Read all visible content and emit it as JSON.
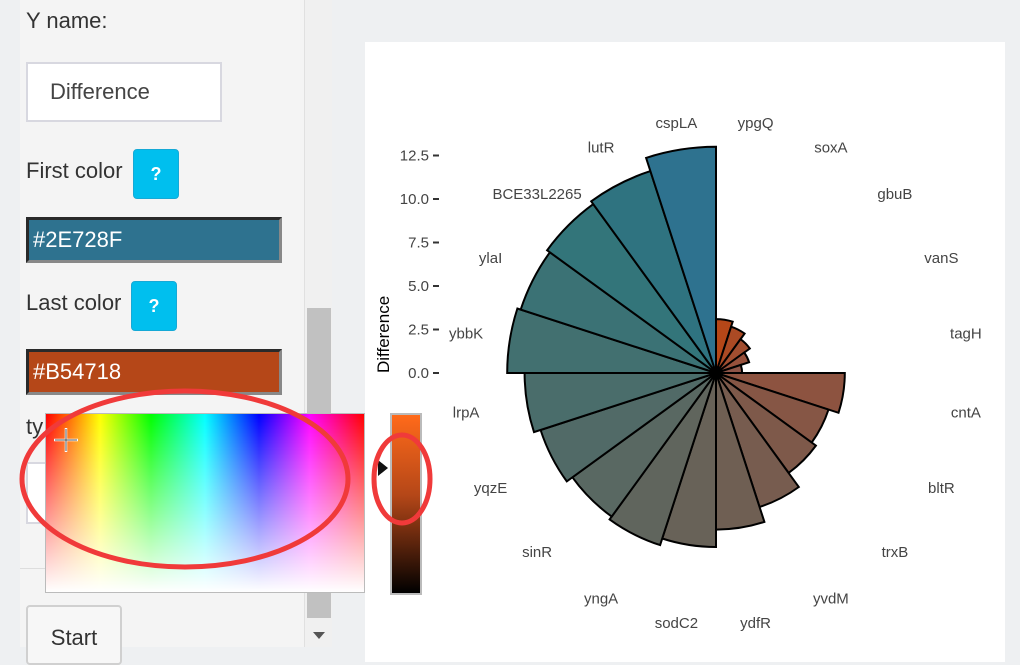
{
  "sidebar": {
    "yname_label": "Y name:",
    "yname_value": "Difference",
    "first_color_label": "First color",
    "first_color_value": "#2E728F",
    "last_color_label": "Last color",
    "last_color_value": "#B54718",
    "type_label_partial": "ty",
    "help_label": "?",
    "start_label": "Start"
  },
  "colors": {
    "first": "#2E728F",
    "last": "#B54718",
    "help_button": "#00BFEE",
    "annotation": "#F03A3A"
  },
  "chart_data": {
    "type": "polar-bar",
    "ylabel": "Difference",
    "yticks": [
      "0.0",
      "2.5",
      "5.0",
      "7.5",
      "10.0",
      "12.5"
    ],
    "ylim": [
      0,
      13
    ],
    "categories": [
      "ypgQ",
      "soxA",
      "gbuB",
      "vanS",
      "tagH",
      "cntA",
      "bltR",
      "trxB",
      "yvdM",
      "ydfR",
      "sodC2",
      "yngA",
      "sinR",
      "yqzE",
      "lrpA",
      "ybbK",
      "ylaI",
      "BCE33L2265",
      "lutR",
      "cspLA"
    ],
    "values": [
      3.1,
      2.8,
      2.4,
      2.0,
      1.5,
      7.4,
      6.8,
      7.1,
      8.1,
      9.0,
      10.0,
      10.4,
      10.2,
      10.6,
      11.0,
      12.0,
      11.8,
      12.0,
      12.2,
      13.0
    ],
    "colors": [
      "#b54718",
      "#ab4a24",
      "#a14e30",
      "#98513c",
      "#8e5548",
      "#8d5340",
      "#865645",
      "#7e594a",
      "#775c4f",
      "#6f5f53",
      "#686258",
      "#60655d",
      "#596862",
      "#516a67",
      "#4a6d6b",
      "#427070",
      "#3b7275",
      "#33757a",
      "#2f7380",
      "#2e728f"
    ]
  },
  "icons": {
    "picker_cursor": "crosshair-icon",
    "slider_arrow": "triangle-right-icon",
    "scroll_down": "chevron-down-icon"
  }
}
